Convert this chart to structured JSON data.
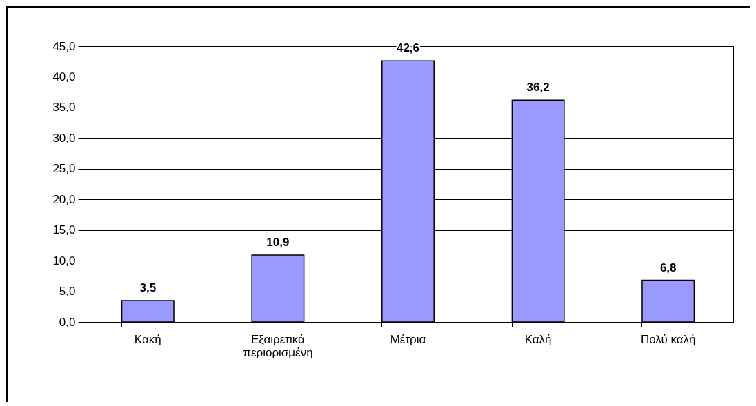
{
  "chart_data": {
    "type": "bar",
    "categories": [
      "Κακή",
      "Εξαιρετικά περιορισμένη",
      "Μέτρια",
      "Καλή",
      "Πολύ καλή"
    ],
    "values": [
      3.5,
      10.9,
      42.6,
      36.2,
      6.8
    ],
    "value_labels": [
      "3,5",
      "10,9",
      "42,6",
      "36,2",
      "6,8"
    ],
    "color": "#9999ff",
    "ylim": [
      0,
      45
    ],
    "yticks": [
      {
        "value": 0,
        "label": "0,0"
      },
      {
        "value": 5,
        "label": "5,0"
      },
      {
        "value": 10,
        "label": "10,0"
      },
      {
        "value": 15,
        "label": "15,0"
      },
      {
        "value": 20,
        "label": "20,0"
      },
      {
        "value": 25,
        "label": "25,0"
      },
      {
        "value": 30,
        "label": "30,0"
      },
      {
        "value": 35,
        "label": "35,0"
      },
      {
        "value": 40,
        "label": "40,0"
      },
      {
        "value": 45,
        "label": "45,0"
      }
    ],
    "grid": "y"
  }
}
